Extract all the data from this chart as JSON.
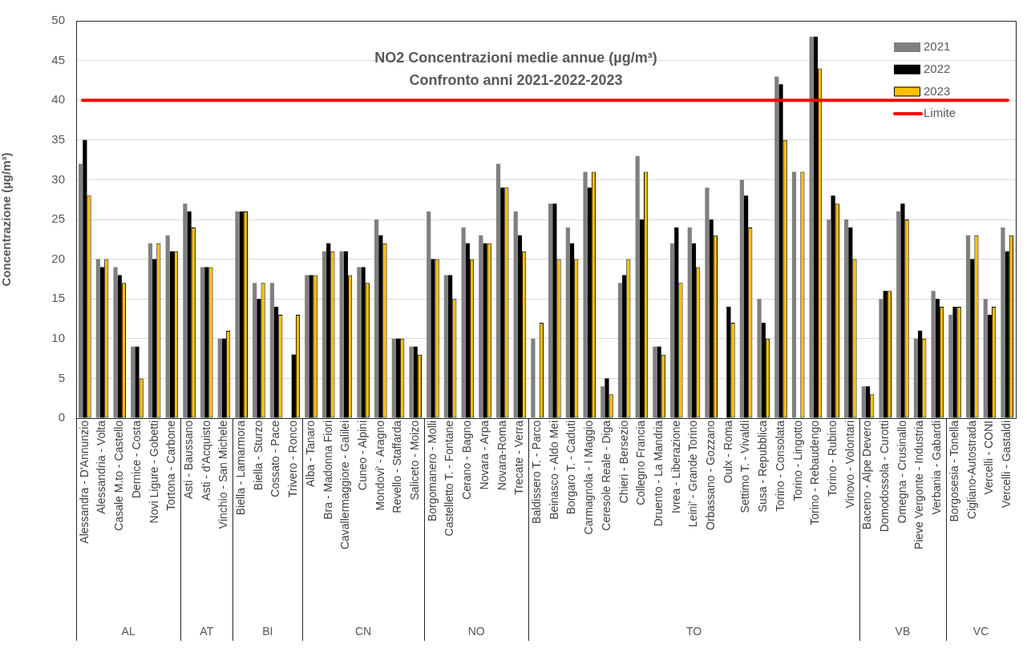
{
  "chart_data": {
    "type": "bar",
    "title": "NO2 Concentrazioni medie annue (µg/m³)",
    "subtitle": "Confronto anni 2021-2022-2023",
    "ylabel": "Concentrazione (µg/m³)",
    "categories": [
      "Alessandra - D'Annunzio",
      "Alessandria - Volta",
      "Casale M.to - Castello",
      "Dernice - Costa",
      "Novi Ligure - Gobetti",
      "Tortona - Carbone",
      "Asti - Baussano",
      "Asti - d'Acquisto",
      "Vinchio - San Michele",
      "Biella - Lamarmora",
      "Biella - Sturzo",
      "Cossato - Pace",
      "Trivero - Ronco",
      "Alba - Tanaro",
      "Bra - Madonna Fiori",
      "Cavallermaggiore - Galilei",
      "Cuneo - Alpini",
      "Mondovi' - Aragno",
      "Revello - Staffarda",
      "Saliceto - Moizo",
      "Borgomanero - Molli",
      "Castelletto T. - Fontane",
      "Cerano - Bagno",
      "Novara - Arpa",
      "Novara-Roma",
      "Trecate - Verra",
      "Baldissero T. - Parco",
      "Beinasco - Aldo Mei",
      "Borgaro T. - Caduti",
      "Carmagnola - I Maggio",
      "Ceresole Reale - Diga",
      "Chieri - Bersezio",
      "Collegno Francia",
      "Druento - La Mandria",
      "Ivrea - Liberazione",
      "Leini' - Grande Torino",
      "Orbassano - Gozzano",
      "Oulx - Roma",
      "Settimo T. - Vivaldi",
      "Susa - Repubblica",
      "Torino - Consolata",
      "Torino - Lingotto",
      "Torino - Rebaudengo",
      "Torino - Rubino",
      "Vinovo - Volontari",
      "Baceno - Alpe Devero",
      "Domodossola - Curotti",
      "Omegna - Crusinallo",
      "Pieve Vergonte - Industria",
      "Verbania - Gabardi",
      "Borgosesia - Tonella",
      "Cigliano-Autostrada",
      "Vercelli - CONI",
      "Vercelli - Gastaldi"
    ],
    "series": [
      {
        "name": "2021",
        "color": "#808080",
        "values": [
          32,
          20,
          19,
          9,
          22,
          23,
          27,
          19,
          10,
          26,
          17,
          17,
          null,
          18,
          21,
          21,
          19,
          25,
          10,
          9,
          26,
          18,
          24,
          23,
          32,
          26,
          10,
          27,
          24,
          31,
          4,
          17,
          33,
          9,
          22,
          24,
          29,
          null,
          30,
          15,
          43,
          31,
          48,
          25,
          25,
          4,
          15,
          26,
          10,
          16,
          13,
          23,
          15,
          24
        ]
      },
      {
        "name": "2022",
        "color": "#000000",
        "values": [
          35,
          19,
          18,
          9,
          20,
          21,
          26,
          19,
          10,
          26,
          15,
          14,
          8,
          18,
          22,
          21,
          19,
          23,
          10,
          9,
          20,
          18,
          22,
          22,
          29,
          23,
          null,
          27,
          22,
          29,
          5,
          18,
          25,
          9,
          24,
          22,
          25,
          14,
          28,
          12,
          42,
          null,
          48,
          28,
          24,
          4,
          16,
          27,
          11,
          15,
          14,
          20,
          13,
          21
        ]
      },
      {
        "name": "2023",
        "color": "#ffc000",
        "values": [
          28,
          20,
          17,
          5,
          22,
          21,
          24,
          19,
          11,
          26,
          17,
          13,
          13,
          18,
          21,
          18,
          17,
          22,
          10,
          8,
          20,
          15,
          20,
          22,
          29,
          21,
          12,
          20,
          20,
          31,
          3,
          20,
          31,
          8,
          17,
          19,
          23,
          12,
          24,
          10,
          35,
          31,
          44,
          27,
          20,
          3,
          16,
          25,
          10,
          14,
          14,
          23,
          14,
          23
        ]
      }
    ],
    "ylim": [
      0,
      50
    ],
    "yticks": [
      0,
      5,
      10,
      15,
      20,
      25,
      30,
      35,
      40,
      45,
      50
    ],
    "grid": "y",
    "legend": "top right",
    "ref_lines": [
      {
        "axis": "y",
        "value": 40,
        "label": "Limite",
        "color": "#ff0000"
      }
    ],
    "annotations": [
      "AL",
      "AT",
      "BI",
      "CN",
      "NO",
      "TO",
      "VB",
      "VC"
    ]
  }
}
